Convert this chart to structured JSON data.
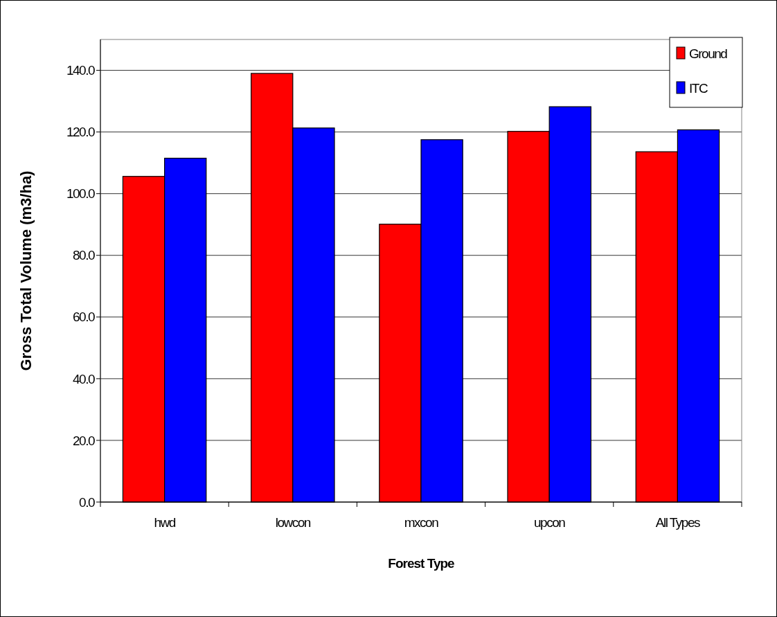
{
  "chart_data": {
    "type": "bar",
    "xlabel": "Forest Type",
    "ylabel": "Gross Total Volume (m3/ha)",
    "categories": [
      "hwd",
      "lowcon",
      "mxcon",
      "upcon",
      "All Types"
    ],
    "series": [
      {
        "name": "Ground",
        "color": "#ff0000",
        "values": [
          105.6,
          139.0,
          90.1,
          120.2,
          113.6
        ]
      },
      {
        "name": "ITC",
        "color": "#0000ff",
        "values": [
          111.5,
          121.3,
          117.5,
          128.2,
          120.7
        ]
      }
    ],
    "ylim": [
      0,
      150
    ],
    "yticks": [
      {
        "value": 0,
        "label": "0.0"
      },
      {
        "value": 20,
        "label": "20.0"
      },
      {
        "value": 40,
        "label": "40.0"
      },
      {
        "value": 60,
        "label": "60.0"
      },
      {
        "value": 80,
        "label": "80.0"
      },
      {
        "value": 100,
        "label": "100.0"
      },
      {
        "value": 120,
        "label": "120.0"
      },
      {
        "value": 140,
        "label": "140.0"
      }
    ],
    "grid": "y",
    "legend": "top right"
  }
}
